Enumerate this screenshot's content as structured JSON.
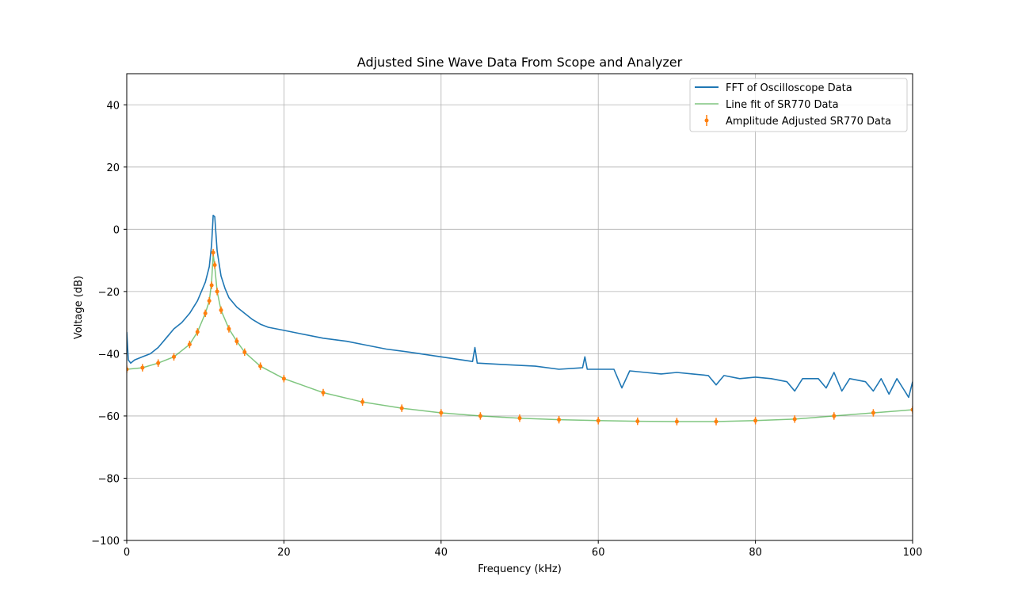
{
  "chart_data": {
    "type": "line",
    "title": "Adjusted Sine Wave Data From Scope and Analyzer",
    "xlabel": "Frequency (kHz)",
    "ylabel": "Voltage (dB)",
    "xlim": [
      0,
      100
    ],
    "ylim": [
      -100,
      50
    ],
    "xticks": [
      0,
      20,
      40,
      60,
      80,
      100
    ],
    "xtick_labels": [
      "0",
      "20",
      "40",
      "60",
      "80",
      "100"
    ],
    "yticks": [
      -100,
      -80,
      -60,
      -40,
      -20,
      0,
      20,
      40
    ],
    "ytick_labels": [
      "−100",
      "−80",
      "−60",
      "−40",
      "−20",
      "0",
      "20",
      "40"
    ],
    "grid": true,
    "legend_position": "top-right",
    "colors": {
      "fft": "#1f77b4",
      "fit": "#2ca02c",
      "sr770": "#ff7f0e",
      "grid": "#b0b0b0"
    },
    "series": [
      {
        "name": "FFT of Oscilloscope Data",
        "kind": "line",
        "x": [
          0,
          0.2,
          0.5,
          1,
          2,
          3,
          4,
          5,
          6,
          7,
          8,
          9,
          9.5,
          10,
          10.5,
          10.8,
          11,
          11.2,
          11.5,
          12,
          12.5,
          13,
          14,
          15,
          16,
          17,
          18,
          20,
          22,
          25,
          28,
          30,
          33,
          36,
          40,
          44,
          44.3,
          44.6,
          48,
          52,
          55,
          58,
          58.3,
          58.6,
          60,
          62,
          63,
          64,
          66,
          68,
          70,
          72,
          74,
          75,
          76,
          78,
          80,
          82,
          84,
          85,
          86,
          88,
          89,
          90,
          91,
          92,
          94,
          95,
          96,
          97,
          98,
          99,
          99.5,
          100
        ],
        "y": [
          -33,
          -42,
          -43,
          -42,
          -41,
          -40,
          -38,
          -35,
          -32,
          -30,
          -27,
          -23,
          -20,
          -17,
          -12,
          -5,
          4.5,
          4,
          -7,
          -15,
          -19,
          -22,
          -25,
          -27,
          -29,
          -30.5,
          -31.5,
          -32.5,
          -33.5,
          -35,
          -36,
          -37,
          -38.5,
          -39.5,
          -41,
          -42.5,
          -38,
          -43,
          -43.5,
          -44,
          -45,
          -44.5,
          -41,
          -45,
          -45,
          -45,
          -51,
          -45.5,
          -46,
          -46.5,
          -46,
          -46.5,
          -47,
          -50,
          -47,
          -48,
          -47.5,
          -48,
          -49,
          -52,
          -48,
          -48,
          -51,
          -46,
          -52,
          -48,
          -49,
          -52,
          -48,
          -53,
          -48,
          -52,
          -54,
          -49
        ]
      },
      {
        "name": "Line fit of SR770 Data",
        "kind": "line",
        "x": [
          0,
          2,
          4,
          6,
          8,
          9,
          10,
          10.5,
          10.8,
          11,
          11.2,
          11.5,
          12,
          13,
          14,
          15,
          17,
          20,
          25,
          30,
          35,
          40,
          45,
          50,
          55,
          60,
          65,
          70,
          75,
          80,
          85,
          90,
          95,
          100
        ],
        "y": [
          -45,
          -44.5,
          -43,
          -41,
          -37,
          -33,
          -27,
          -23,
          -17,
          -8,
          -12,
          -20,
          -26,
          -32,
          -36,
          -39.5,
          -44,
          -48,
          -52.5,
          -55.5,
          -57.5,
          -59,
          -60,
          -60.7,
          -61.2,
          -61.5,
          -61.7,
          -61.8,
          -61.8,
          -61.5,
          -61,
          -60,
          -59,
          -58
        ]
      },
      {
        "name": "Amplitude Adjusted SR770 Data",
        "kind": "errorbar",
        "marker": "dot",
        "error": 1.2,
        "x": [
          0,
          2,
          4,
          6,
          8,
          9,
          10,
          10.5,
          10.8,
          11,
          11.2,
          11.5,
          12,
          13,
          14,
          15,
          17,
          20,
          25,
          30,
          35,
          40,
          45,
          50,
          55,
          60,
          65,
          70,
          75,
          80,
          85,
          90,
          95,
          100
        ],
        "y": [
          -45,
          -44.5,
          -43,
          -41,
          -37,
          -33,
          -27,
          -23,
          -18,
          -7.5,
          -11.5,
          -20,
          -26,
          -32,
          -36,
          -39.5,
          -44,
          -48,
          -52.5,
          -55.5,
          -57.5,
          -59,
          -60,
          -60.7,
          -61.2,
          -61.5,
          -61.7,
          -61.8,
          -61.8,
          -61.5,
          -61,
          -60,
          -59,
          -58
        ]
      }
    ]
  }
}
